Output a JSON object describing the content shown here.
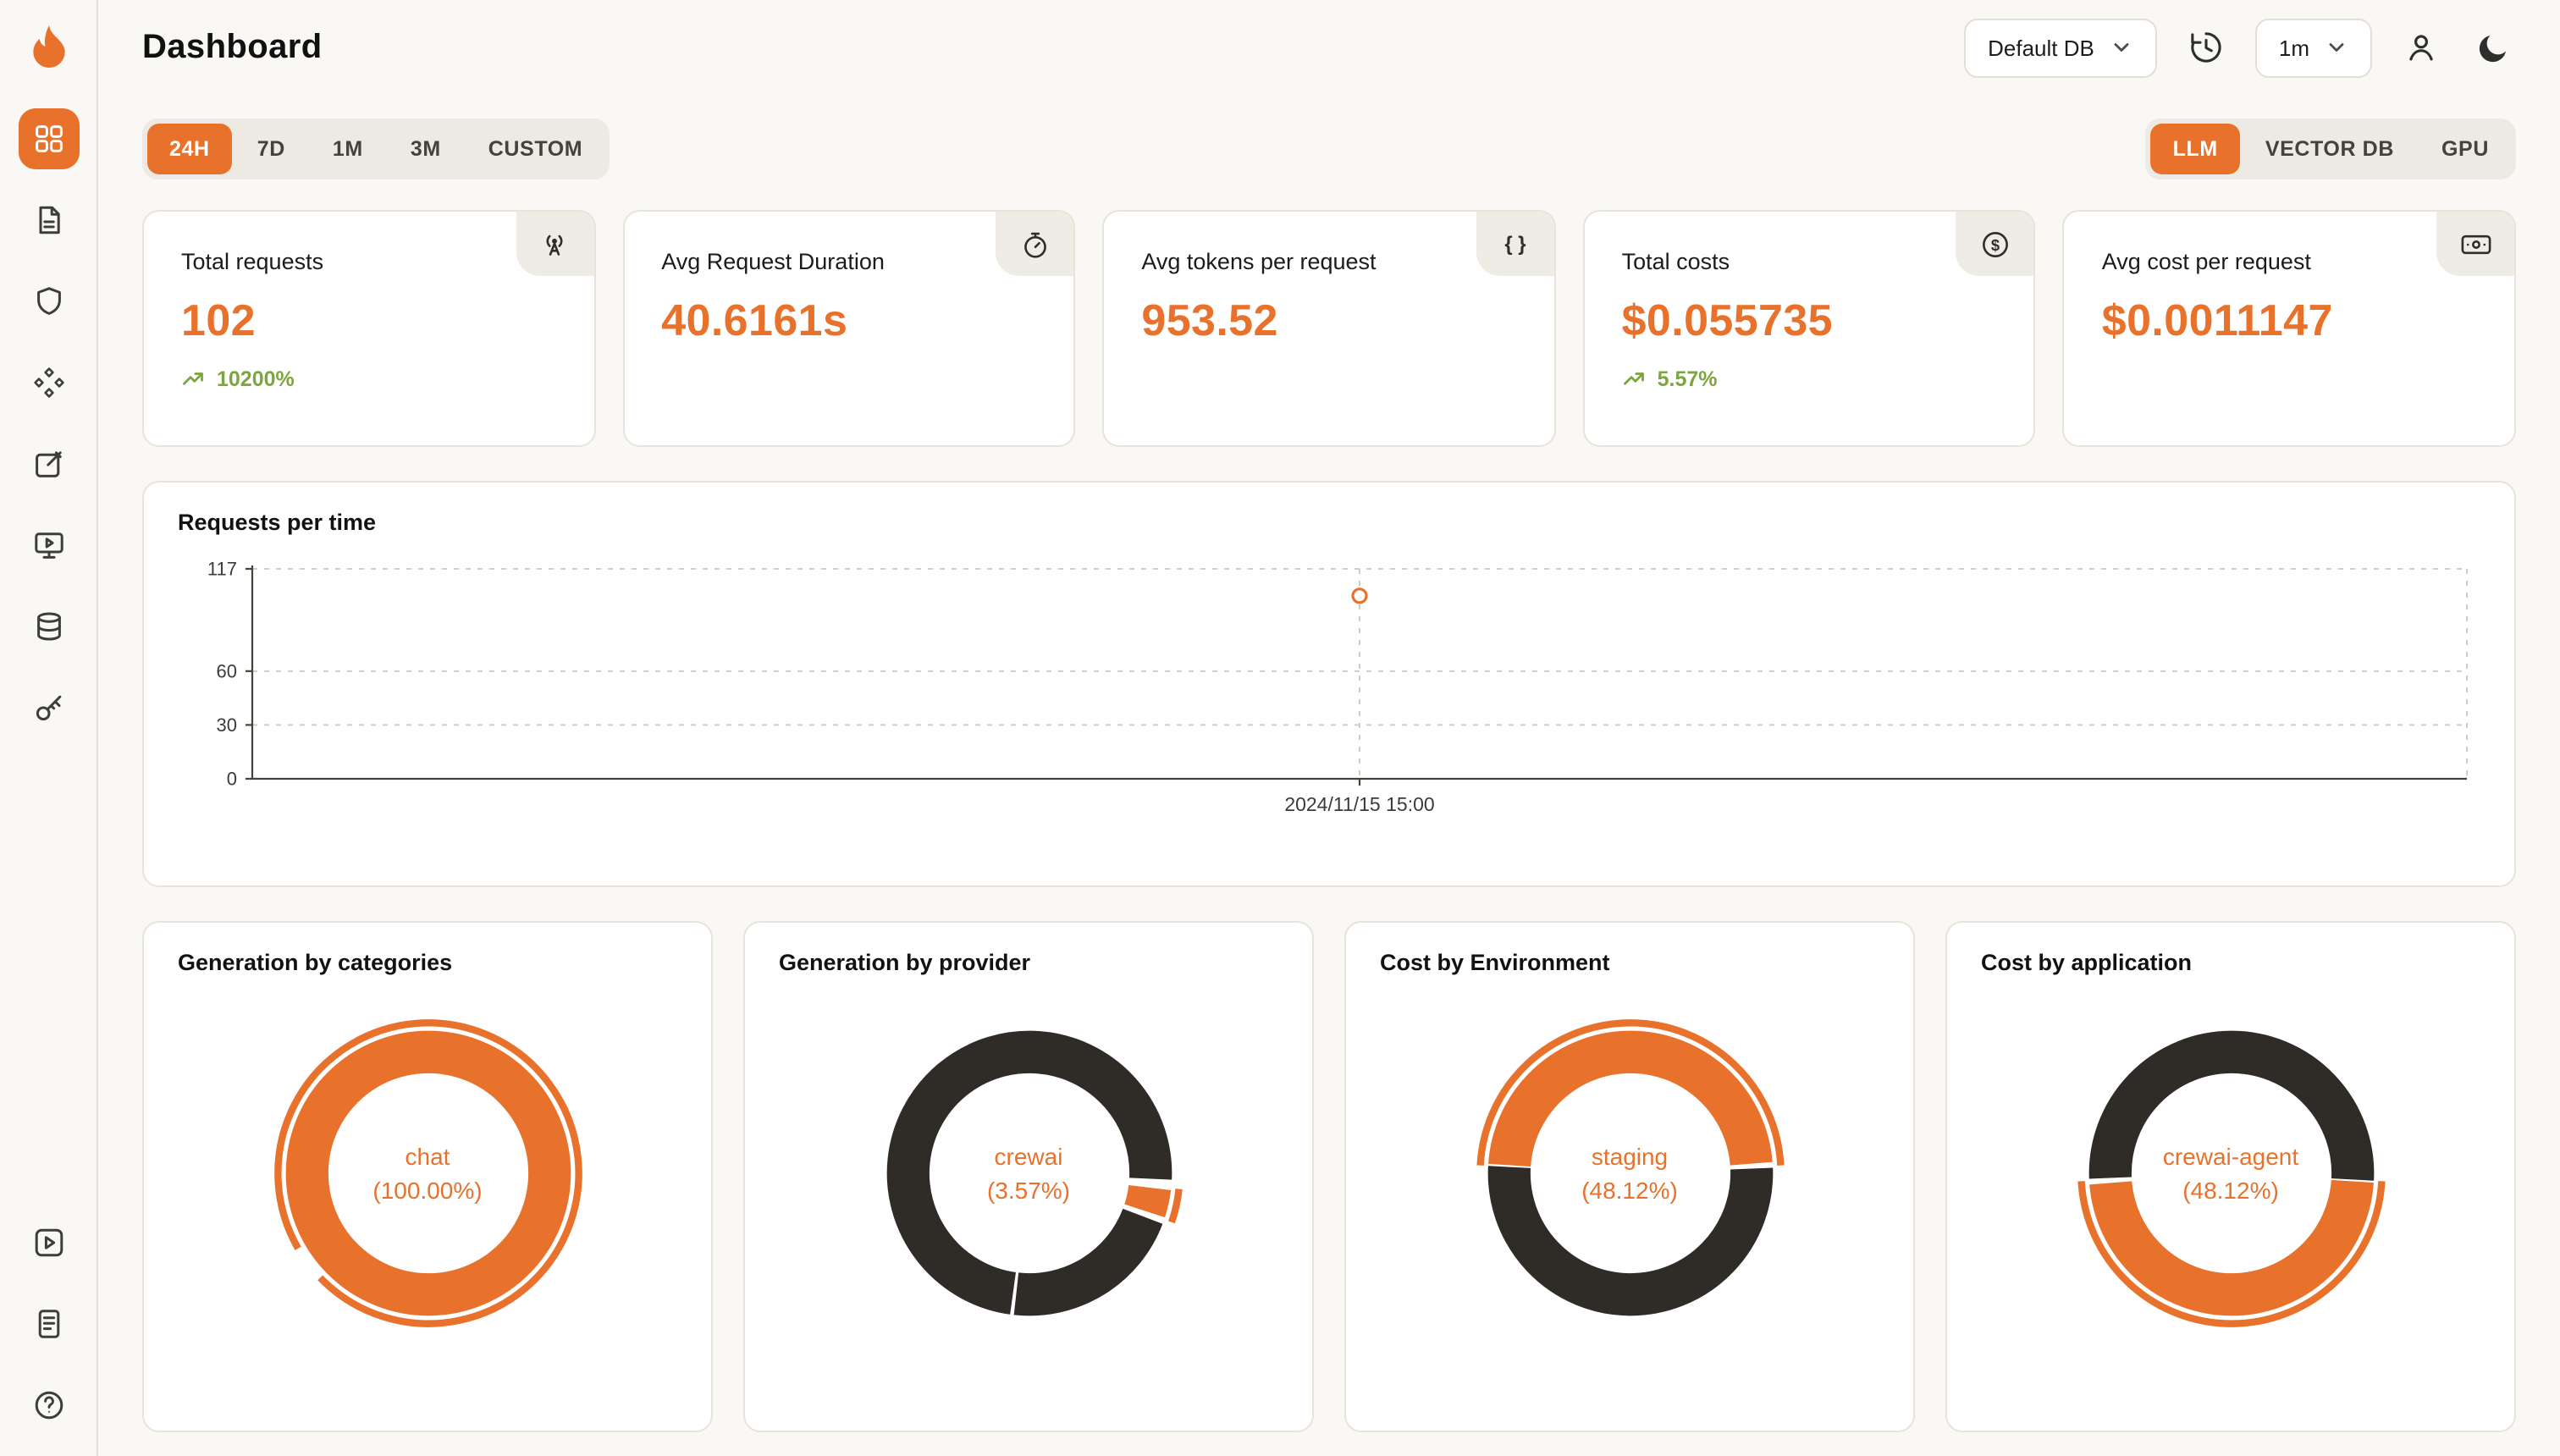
{
  "header": {
    "title": "Dashboard",
    "database_select": {
      "value": "Default DB",
      "icon": "chevron-down-icon"
    },
    "interval_select": {
      "value": "1m",
      "icon": "chevron-down-icon"
    },
    "icons": [
      "history-refresh-icon",
      "person-icon",
      "moon-icon"
    ]
  },
  "sidebar": {
    "logo_icon": "flame-logo-icon",
    "items": [
      {
        "icon": "dashboard-grid-icon",
        "active": true
      },
      {
        "icon": "file-document-icon",
        "active": false
      },
      {
        "icon": "shield-icon",
        "active": false
      },
      {
        "icon": "nodes-icon",
        "active": false
      },
      {
        "icon": "edit-note-icon",
        "active": false
      },
      {
        "icon": "monitor-play-icon",
        "active": false
      },
      {
        "icon": "database-icon",
        "active": false
      },
      {
        "icon": "key-icon",
        "active": false
      }
    ],
    "bottom_items": [
      {
        "icon": "play-square-icon"
      },
      {
        "icon": "docs-icon"
      },
      {
        "icon": "help-icon"
      }
    ]
  },
  "filters": {
    "time_ranges": [
      "24H",
      "7D",
      "1M",
      "3M",
      "CUSTOM"
    ],
    "active_time_range": "24H",
    "sources": [
      "LLM",
      "VECTOR DB",
      "GPU"
    ],
    "active_source": "LLM"
  },
  "stats": [
    {
      "title": "Total requests",
      "value": "102",
      "delta": "10200%",
      "delta_icon": "trending-up-icon",
      "icon": "radio-tower-icon"
    },
    {
      "title": "Avg Request Duration",
      "value": "40.6161s",
      "icon": "stopwatch-icon"
    },
    {
      "title": "Avg tokens per request",
      "value": "953.52",
      "icon": "braces-icon"
    },
    {
      "title": "Total costs",
      "value": "$0.055735",
      "delta": "5.57%",
      "delta_icon": "trending-up-icon",
      "icon": "dollar-circle-icon"
    },
    {
      "title": "Avg cost per request",
      "value": "$0.0011147",
      "icon": "banknote-icon"
    }
  ],
  "colors": {
    "accent": "#E8722B",
    "dark": "#2F2B27",
    "positive": "#7CA63E",
    "page_bg": "#FAF8F4",
    "card_border": "#E8E4DC"
  },
  "chart_data": [
    {
      "type": "line",
      "title": "Requests per time",
      "x": [
        "2024/11/15 15:00"
      ],
      "series": [
        {
          "name": "Requests",
          "values": [
            102
          ]
        }
      ],
      "y_ticks": [
        0,
        30,
        60,
        117
      ],
      "ylim": [
        0,
        117
      ],
      "x_frac": 0.5,
      "grid": "dashed",
      "legend": "none"
    },
    {
      "type": "pie",
      "title": "Generation by categories",
      "center_line1": "chat",
      "center_line2": "(100.00%)",
      "segments": [
        {
          "label": "chat",
          "pct": 100,
          "color": "accent",
          "start_deg": 0
        }
      ],
      "outer_arc": {
        "start": 240,
        "end": 586
      }
    },
    {
      "type": "pie",
      "title": "Generation by provider",
      "center_line1": "crewai",
      "center_line2": "(3.57%)",
      "segments": [
        {
          "label": "crewai",
          "pct": 3.57,
          "color": "accent",
          "start_deg": 96
        },
        {
          "label": "",
          "pct": 21.4,
          "color": "dark",
          "start_deg": 110
        },
        {
          "label": "",
          "pct": 74.0,
          "color": "dark",
          "start_deg": 187
        }
      ],
      "outer_arc": {
        "start": 96,
        "end": 109
      }
    },
    {
      "type": "pie",
      "title": "Cost by Environment",
      "center_line1": "staging",
      "center_line2": "(48.12%)",
      "segments": [
        {
          "label": "staging",
          "pct": 48.12,
          "color": "accent",
          "start_deg": 273
        },
        {
          "label": "",
          "pct": 51.88,
          "color": "dark",
          "start_deg": 87
        }
      ],
      "outer_arc": {
        "start": 273,
        "end": 447
      }
    },
    {
      "type": "pie",
      "title": "Cost by application",
      "center_line1": "crewai-agent",
      "center_line2": "(48.12%)",
      "segments": [
        {
          "label": "crewai-agent",
          "pct": 48.12,
          "color": "accent",
          "start_deg": 93
        },
        {
          "label": "",
          "pct": 51.88,
          "color": "dark",
          "start_deg": 267
        }
      ],
      "outer_arc": {
        "start": 93,
        "end": 267
      }
    }
  ]
}
